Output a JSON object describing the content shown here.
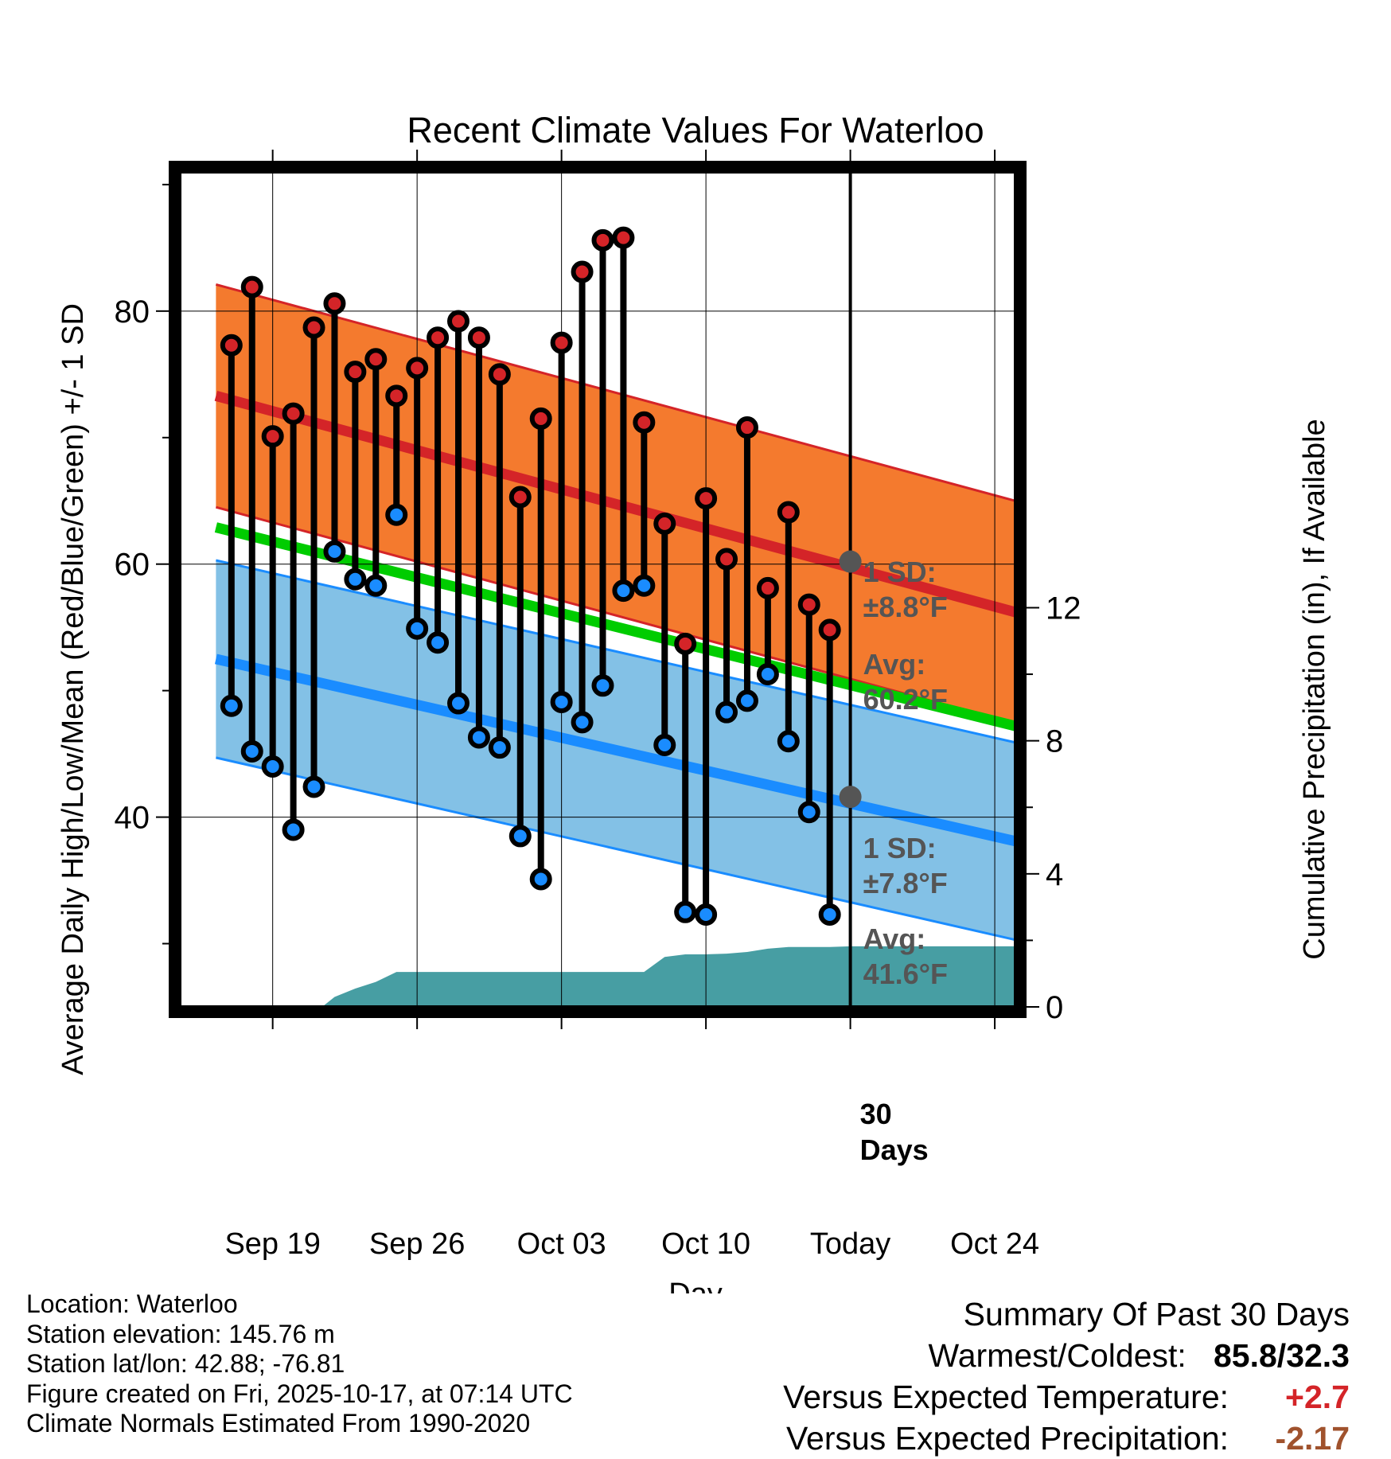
{
  "chart_data": {
    "type": "line",
    "title": "Recent Climate Values For Waterloo",
    "xlabel": "Day",
    "ylabel": "Average Daily High/Low/Mean (Red/Blue/Green) +/- 1 SD",
    "y2label": "Cumulative Precipitation (in), If Available",
    "ylim": [
      25,
      91
    ],
    "y2lim": [
      0,
      25.1
    ],
    "xlim": [
      -4.5,
      36
    ],
    "xtick_values": [
      0,
      7,
      14,
      21,
      28,
      35
    ],
    "xtick_labels": [
      "Sep 19",
      "Sep 26",
      "Oct 03",
      "Oct 10",
      "Today",
      "Oct 24"
    ],
    "ytick_values": [
      40,
      60,
      80
    ],
    "ytick_labels": [
      "40",
      "60",
      "80"
    ],
    "y2tick_values": [
      0,
      4,
      8,
      12
    ],
    "y2tick_labels": [
      "0",
      "4",
      "8",
      "12"
    ],
    "grid": true,
    "today_index": 28,
    "daily": {
      "x": [
        -2,
        -1,
        0,
        1,
        2,
        3,
        4,
        5,
        6,
        7,
        8,
        9,
        10,
        11,
        12,
        13,
        14,
        15,
        16,
        17,
        18,
        19,
        20,
        21,
        22,
        23,
        24,
        25,
        26,
        27
      ],
      "high": [
        77.3,
        81.9,
        70.1,
        71.9,
        78.7,
        80.6,
        75.2,
        76.2,
        73.3,
        75.5,
        77.9,
        79.2,
        77.9,
        75.0,
        65.3,
        71.5,
        77.5,
        83.1,
        85.6,
        85.8,
        71.2,
        63.2,
        53.7,
        65.2,
        60.4,
        70.8,
        58.1,
        64.1,
        56.8,
        54.8
      ],
      "low": [
        48.8,
        45.2,
        44.0,
        39.0,
        42.4,
        61.0,
        58.8,
        58.3,
        63.9,
        54.9,
        53.8,
        49.0,
        46.3,
        45.5,
        38.5,
        35.1,
        49.1,
        47.5,
        50.4,
        57.9,
        58.3,
        45.7,
        32.5,
        32.3,
        48.3,
        49.2,
        51.3,
        46.0,
        40.4,
        32.3
      ]
    },
    "normals": {
      "high_avg": [
        73.3,
        56.2
      ],
      "high_sd": 8.8,
      "low_avg": [
        52.5,
        38.1
      ],
      "low_sd": 7.8,
      "mean_avg": [
        62.9,
        47.2
      ],
      "x_range": [
        -2.75,
        36.0
      ]
    },
    "precipitation": {
      "x": [
        -2.75,
        0,
        1,
        2,
        2.5,
        3,
        4,
        5,
        6,
        7,
        8,
        9,
        10,
        11,
        12,
        13,
        14,
        15,
        16,
        17,
        18,
        19,
        20,
        21,
        22,
        23,
        24,
        25,
        26,
        27,
        28,
        29,
        30,
        31,
        32,
        33,
        34,
        35,
        36
      ],
      "y": [
        0,
        0,
        0,
        0,
        0.05,
        0.3,
        0.55,
        0.75,
        1.05,
        1.05,
        1.05,
        1.05,
        1.05,
        1.05,
        1.05,
        1.05,
        1.05,
        1.05,
        1.05,
        1.05,
        1.05,
        1.5,
        1.58,
        1.58,
        1.6,
        1.65,
        1.75,
        1.8,
        1.8,
        1.8,
        1.82,
        1.82,
        1.82,
        1.82,
        1.82,
        1.82,
        1.82,
        1.82,
        1.82
      ]
    },
    "annotations": {
      "high_sd_label_1": "1 SD:",
      "high_sd_label_2": "±8.8°F",
      "high_avg_label_1": "Avg:",
      "high_avg_label_2": "60.2°F",
      "high_avg_value": 60.2,
      "low_sd_label_1": "1 SD:",
      "low_sd_label_2": "±7.8°F",
      "low_avg_label_1": "Avg:",
      "low_avg_label_2": "41.6°F",
      "low_avg_value": 41.6,
      "days_label_1": "30",
      "days_label_2": "Days"
    },
    "colors": {
      "high_band": "#f47a2e",
      "high_line": "#d42428",
      "low_band": "#83c1e6",
      "low_line": "#1a8cff",
      "mean_line": "#00cc00",
      "precip": "#479ea3",
      "high_dot": "#d42428",
      "low_dot": "#1a8cff",
      "annotation": "#555555"
    }
  },
  "footer": {
    "location": "Location: Waterloo",
    "elevation": "Station elevation: 145.76 m",
    "latlon": "Station lat/lon: 42.88; -76.81",
    "created": "Figure created on Fri, 2025-10-17, at 07:14 UTC",
    "normals": "Climate Normals Estimated From 1990-2020"
  },
  "summary": {
    "title": "Summary Of Past 30 Days",
    "warm_cold_label": "Warmest/Coldest:",
    "warm_cold_value": "85.8/32.3",
    "temp_label": "Versus Expected Temperature:",
    "temp_value": "+2.7",
    "temp_color": "#d42428",
    "precip_label": "Versus Expected Precipitation:",
    "precip_value": "-2.17",
    "precip_color": "#a0522d"
  }
}
